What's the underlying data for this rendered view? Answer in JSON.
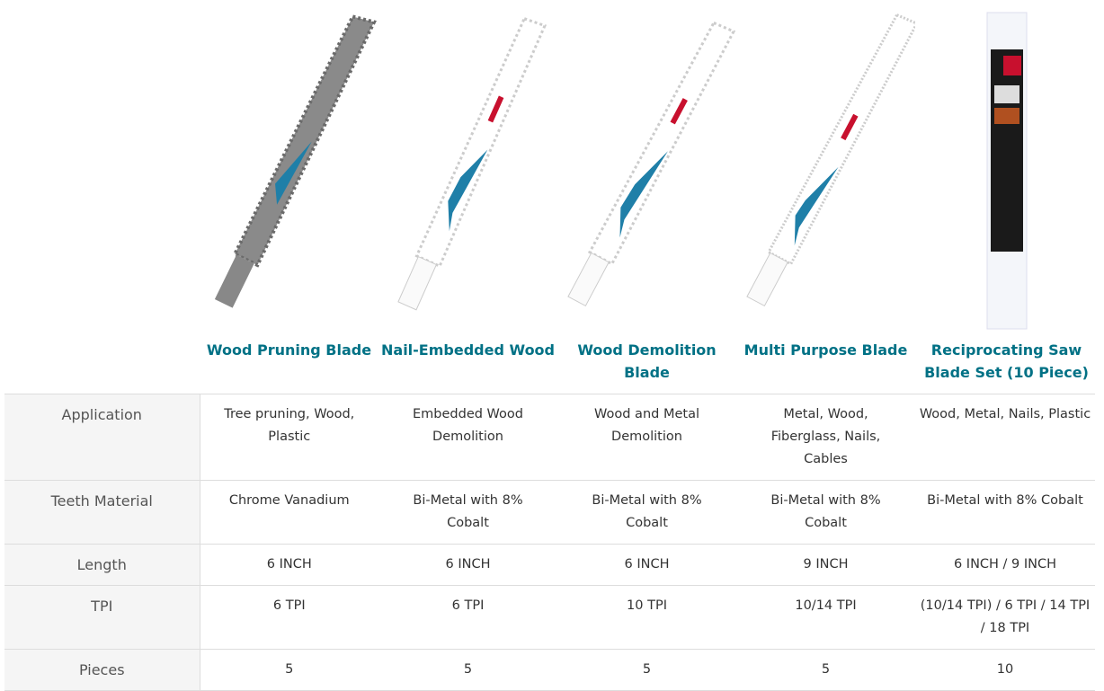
{
  "products": [
    {
      "name": "Wood Pruning Blade"
    },
    {
      "name": "Nail-Embedded Wood"
    },
    {
      "name": "Wood Demolition Blade"
    },
    {
      "name": "Multi Purpose Blade"
    },
    {
      "name": "Reciprocating Saw Blade Set (10 Piece)"
    }
  ],
  "rows": [
    {
      "label": "Application",
      "cells": [
        "Tree pruning, Wood, Plastic",
        "Embedded Wood Demolition",
        "Wood and Metal Demolition",
        "Metal, Wood, Fiberglass, Nails, Cables",
        "Wood, Metal, Nails, Plastic"
      ]
    },
    {
      "label": "Teeth Material",
      "cells": [
        "Chrome Vanadium",
        "Bi-Metal with 8% Cobalt",
        "Bi-Metal with 8% Cobalt",
        "Bi-Metal with 8% Cobalt",
        "Bi-Metal with 8% Cobalt"
      ]
    },
    {
      "label": "Length",
      "cells": [
        "6 INCH",
        "6 INCH",
        "6 INCH",
        "9 INCH",
        "6 INCH / 9 INCH"
      ]
    },
    {
      "label": "TPI",
      "cells": [
        "6 TPI",
        "6 TPI",
        "10 TPI",
        "10/14 TPI",
        "(10/14 TPI) / 6 TPI / 14 TPI / 18 TPI"
      ]
    },
    {
      "label": "Pieces",
      "cells": [
        "5",
        "5",
        "5",
        "5",
        "10"
      ]
    }
  ]
}
